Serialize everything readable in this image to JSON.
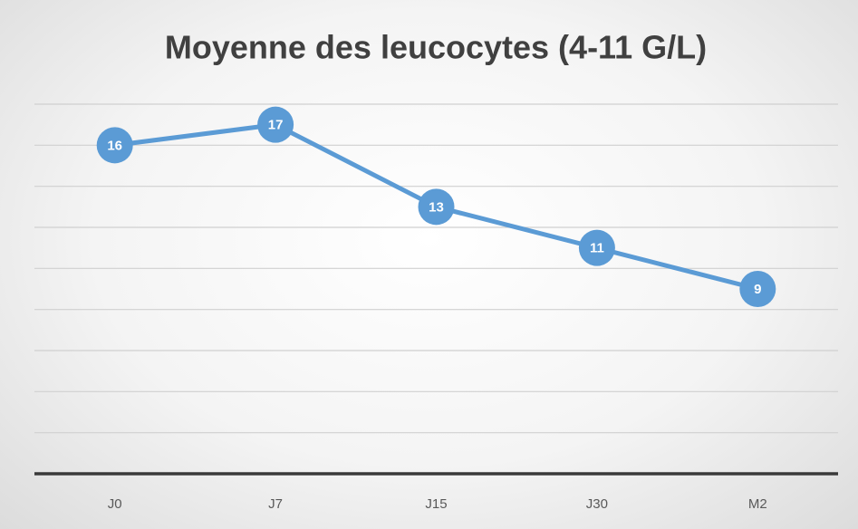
{
  "chart_data": {
    "type": "line",
    "title": "Moyenne des leucocytes (4-11 G/L)",
    "categories": [
      "J0",
      "J7",
      "J15",
      "J30",
      "M2"
    ],
    "values": [
      16,
      17,
      13,
      11,
      9
    ],
    "color": "#5b9bd5",
    "ylim": [
      0,
      18
    ],
    "yticks": [
      0,
      2,
      4,
      6,
      8,
      10,
      12,
      14,
      16,
      18
    ],
    "grid": true
  }
}
